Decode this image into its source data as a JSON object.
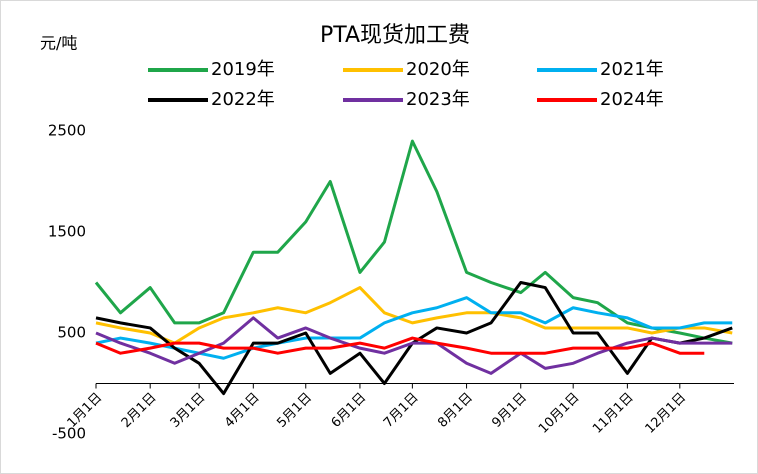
{
  "chart_data": {
    "type": "line",
    "title": "PTA现货加工费",
    "y_label": "元/吨",
    "x": [
      1,
      15,
      32,
      46,
      60,
      74,
      91,
      105,
      121,
      135,
      152,
      166,
      182,
      196,
      213,
      227,
      244,
      258,
      274,
      288,
      305,
      319,
      335,
      349,
      365
    ],
    "xlim": [
      1,
      366
    ],
    "xticks": [
      {
        "value": 1,
        "label": "1月1日"
      },
      {
        "value": 32,
        "label": "2月1日"
      },
      {
        "value": 60,
        "label": "3月1日"
      },
      {
        "value": 91,
        "label": "4月1日"
      },
      {
        "value": 121,
        "label": "5月1日"
      },
      {
        "value": 152,
        "label": "6月1日"
      },
      {
        "value": 182,
        "label": "7月1日"
      },
      {
        "value": 213,
        "label": "8月1日"
      },
      {
        "value": 244,
        "label": "9月1日"
      },
      {
        "value": 274,
        "label": "10月1日"
      },
      {
        "value": 305,
        "label": "11月1日"
      },
      {
        "value": 335,
        "label": "12月1日"
      }
    ],
    "ylim": [
      -500,
      2500
    ],
    "yticks": [
      -500,
      500,
      1500,
      2500
    ],
    "grid": false,
    "series": [
      {
        "name": "2019年",
        "color": "#1fa64a",
        "values": [
          1000,
          700,
          950,
          600,
          600,
          700,
          1300,
          1300,
          1600,
          2000,
          1100,
          1400,
          2400,
          1900,
          1100,
          1000,
          900,
          1100,
          850,
          800,
          600,
          550,
          500,
          450,
          400
        ]
      },
      {
        "name": "2020年",
        "color": "#ffc000",
        "values": [
          600,
          550,
          500,
          400,
          550,
          650,
          700,
          750,
          700,
          800,
          950,
          700,
          600,
          650,
          700,
          700,
          650,
          550,
          550,
          550,
          550,
          500,
          550,
          550,
          500
        ]
      },
      {
        "name": "2021年",
        "color": "#00b0f0",
        "values": [
          400,
          450,
          400,
          350,
          300,
          250,
          350,
          400,
          450,
          450,
          450,
          600,
          700,
          750,
          850,
          700,
          700,
          600,
          750,
          700,
          650,
          550,
          550,
          600,
          600
        ]
      },
      {
        "name": "2022年",
        "color": "#000000",
        "values": [
          650,
          600,
          550,
          350,
          200,
          -100,
          400,
          400,
          500,
          100,
          300,
          0,
          400,
          550,
          500,
          600,
          1000,
          950,
          500,
          500,
          100,
          450,
          400,
          450,
          550
        ]
      },
      {
        "name": "2023年",
        "color": "#7030a0",
        "values": [
          500,
          400,
          300,
          200,
          300,
          400,
          650,
          450,
          550,
          450,
          350,
          300,
          400,
          400,
          200,
          100,
          300,
          150,
          200,
          300,
          400,
          450,
          400,
          400,
          400
        ]
      },
      {
        "name": "2024年",
        "color": "#ff0000",
        "values": [
          400,
          300,
          350,
          400,
          400,
          350,
          350,
          300,
          350,
          350,
          400,
          350,
          450,
          400,
          350,
          300,
          300,
          300,
          350,
          350,
          350,
          400,
          300,
          300,
          null
        ]
      }
    ]
  }
}
